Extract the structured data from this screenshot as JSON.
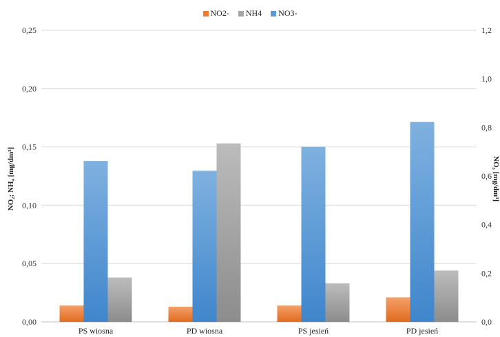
{
  "chart_data": {
    "type": "bar",
    "categories": [
      "PS wiosna",
      "PD wiosna",
      "PS jesień",
      "PD jesień"
    ],
    "series": [
      {
        "name": "NO2-",
        "axis": "left",
        "color": "#ed7d31",
        "values": [
          0.014,
          0.013,
          0.014,
          0.021
        ]
      },
      {
        "name": "NO3-",
        "axis": "right",
        "color": "#5b9bd5",
        "values": [
          0.662,
          0.622,
          0.72,
          0.823
        ]
      },
      {
        "name": "NH4",
        "axis": "left",
        "color": "#a5a5a5",
        "values": [
          0.038,
          0.153,
          0.033,
          0.044
        ]
      }
    ],
    "legend": [
      {
        "name": "NO2-",
        "color": "#ed7d31"
      },
      {
        "name": "NH4",
        "color": "#a5a5a5"
      },
      {
        "name": "NO3-",
        "color": "#5b9bd5"
      }
    ],
    "legend_position": "top",
    "ylabel_left": "NO₂; NH₄ [mg/dm³]",
    "ylabel_right": "NO₃ [mg/dm³]",
    "ylim_left": [
      0,
      0.25
    ],
    "ylim_right": [
      0,
      1.2
    ],
    "yticks_left": [
      "0,00",
      "0,05",
      "0,10",
      "0,15",
      "0,20",
      "0,25"
    ],
    "yticks_right": [
      "0,0",
      "0,2",
      "0,4",
      "0,6",
      "0,8",
      "1,0",
      "1,2"
    ],
    "grid": true
  }
}
